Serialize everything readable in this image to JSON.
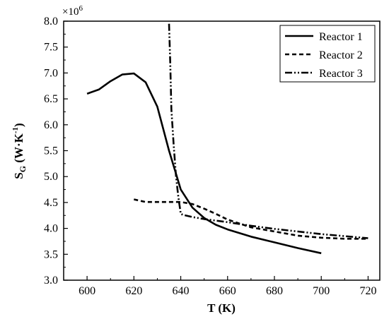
{
  "chart_data": {
    "type": "line",
    "xlabel": "T (K)",
    "ylabel_main": "S",
    "ylabel_sub": "G",
    "ylabel_rest": " (W·K",
    "ylabel_sup": "-1",
    "ylabel_close": ")",
    "y_multiplier_base": "×10",
    "y_multiplier_exp": "6",
    "xlim": [
      590,
      725
    ],
    "ylim": [
      3.0,
      8.0
    ],
    "x_ticks": [
      600,
      620,
      640,
      660,
      680,
      700,
      720
    ],
    "y_ticks": [
      3.0,
      3.5,
      4.0,
      4.5,
      5.0,
      5.5,
      6.0,
      6.5,
      7.0,
      7.5,
      8.0
    ],
    "legend_position": "top-right",
    "grid": false,
    "series": [
      {
        "name": "Reactor 1",
        "dash": "solid",
        "points": [
          [
            600,
            6.6
          ],
          [
            605,
            6.68
          ],
          [
            610,
            6.84
          ],
          [
            615,
            6.97
          ],
          [
            620,
            6.99
          ],
          [
            625,
            6.82
          ],
          [
            630,
            6.35
          ],
          [
            635,
            5.5
          ],
          [
            640,
            4.75
          ],
          [
            645,
            4.4
          ],
          [
            650,
            4.2
          ],
          [
            655,
            4.07
          ],
          [
            660,
            3.98
          ],
          [
            670,
            3.84
          ],
          [
            680,
            3.73
          ],
          [
            690,
            3.62
          ],
          [
            700,
            3.52
          ]
        ]
      },
      {
        "name": "Reactor 2",
        "dash": "dash",
        "points": [
          [
            620,
            4.56
          ],
          [
            625,
            4.51
          ],
          [
            630,
            4.51
          ],
          [
            635,
            4.51
          ],
          [
            640,
            4.51
          ],
          [
            645,
            4.47
          ],
          [
            650,
            4.38
          ],
          [
            655,
            4.28
          ],
          [
            660,
            4.17
          ],
          [
            670,
            4.02
          ],
          [
            680,
            3.94
          ],
          [
            690,
            3.86
          ],
          [
            700,
            3.82
          ],
          [
            710,
            3.8
          ],
          [
            720,
            3.8
          ]
        ]
      },
      {
        "name": "Reactor 3",
        "dash": "dashdotdot",
        "points": [
          [
            635,
            7.95
          ],
          [
            635.5,
            7.2
          ],
          [
            636,
            6.3
          ],
          [
            637,
            5.6
          ],
          [
            638,
            5.0
          ],
          [
            639,
            4.6
          ],
          [
            640,
            4.28
          ],
          [
            641,
            4.26
          ],
          [
            645,
            4.22
          ],
          [
            650,
            4.18
          ],
          [
            660,
            4.12
          ],
          [
            670,
            4.05
          ],
          [
            680,
            3.99
          ],
          [
            690,
            3.94
          ],
          [
            700,
            3.89
          ],
          [
            710,
            3.85
          ],
          [
            720,
            3.81
          ]
        ]
      }
    ]
  }
}
